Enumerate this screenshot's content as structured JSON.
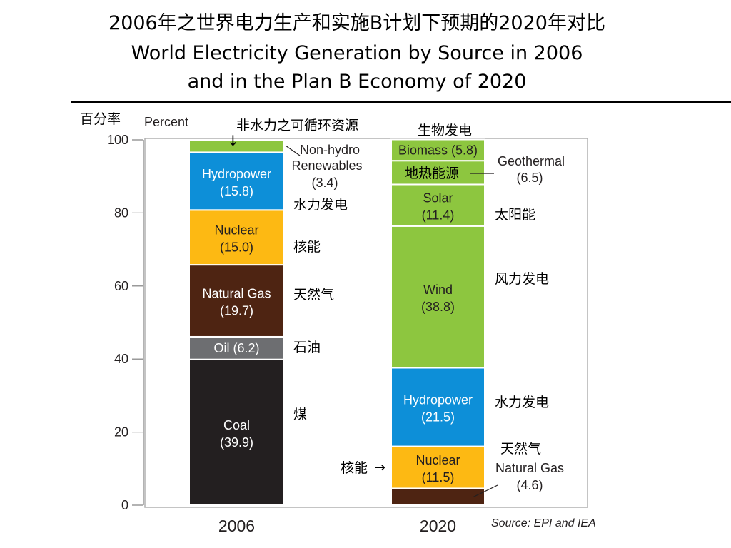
{
  "header": {
    "title_cn": "2006年之世界电力生产和实施B计划下预期的2020年对比",
    "title_en_line1": "World Electricity Generation by Source in 2006",
    "title_en_line2": "and in the Plan B Economy of 2020"
  },
  "annotations_cn": {
    "y_axis": "百分率",
    "non_hydro": "非水力之可循环资源",
    "biomass": "生物发电",
    "geothermal": "地热能源",
    "hydro_2006": "水力发电",
    "solar": "太阳能",
    "nuclear_2006": "核能",
    "wind": "风力发电",
    "gas_2006": "天然气",
    "oil": "石油",
    "hydro_2020": "水力发电",
    "coal": "煤",
    "gas_2020": "天然气",
    "nuclear_2020": "核能"
  },
  "arrows": {
    "down": "↓",
    "right": "→"
  },
  "chart_data": {
    "type": "bar",
    "stacked": true,
    "ylabel": "Percent",
    "ylim": [
      0,
      100
    ],
    "yticks": [
      "0",
      "20",
      "40",
      "60",
      "80",
      "100"
    ],
    "categories": [
      "2006",
      "2020"
    ],
    "source": "Source: EPI and IEA",
    "stacks": [
      {
        "category": "2006",
        "segments": [
          {
            "name": "Coal",
            "value": 39.9,
            "color": "#231f20",
            "text_color": "#ffffff",
            "label_name": "Coal",
            "label_value": "(39.9)"
          },
          {
            "name": "Oil",
            "value": 6.2,
            "color": "#6d6e71",
            "text_color": "#ffffff",
            "label_name": "Oil (6.2)",
            "label_value": ""
          },
          {
            "name": "Natural Gas",
            "value": 19.7,
            "color": "#4e2412",
            "text_color": "#ffffff",
            "label_name": "Natural Gas",
            "label_value": "(19.7)"
          },
          {
            "name": "Nuclear",
            "value": 15.0,
            "color": "#fdb913",
            "text_color": "#231f20",
            "label_name": "Nuclear",
            "label_value": "(15.0)"
          },
          {
            "name": "Hydropower",
            "value": 15.8,
            "color": "#0d8fd8",
            "text_color": "#ffffff",
            "label_name": "Hydropower",
            "label_value": "(15.8)"
          },
          {
            "name": "Non-hydro Renewables",
            "value": 3.4,
            "color": "#8dc63f",
            "text_color": "#231f20",
            "label_name": "",
            "label_value": ""
          }
        ]
      },
      {
        "category": "2020",
        "segments": [
          {
            "name": "Natural Gas",
            "value": 4.6,
            "color": "#4e2412",
            "text_color": "#ffffff",
            "label_name": "",
            "label_value": ""
          },
          {
            "name": "Nuclear",
            "value": 11.5,
            "color": "#fdb913",
            "text_color": "#231f20",
            "label_name": "Nuclear",
            "label_value": "(11.5)"
          },
          {
            "name": "Hydropower",
            "value": 21.5,
            "color": "#0d8fd8",
            "text_color": "#ffffff",
            "label_name": "Hydropower",
            "label_value": "(21.5)"
          },
          {
            "name": "Wind",
            "value": 38.8,
            "color": "#8dc63f",
            "text_color": "#231f20",
            "label_name": "Wind",
            "label_value": "(38.8)"
          },
          {
            "name": "Solar",
            "value": 11.4,
            "color": "#8dc63f",
            "text_color": "#231f20",
            "label_name": "Solar",
            "label_value": "(11.4)"
          },
          {
            "name": "Geothermal",
            "value": 6.5,
            "color": "#8dc63f",
            "text_color": "#231f20",
            "label_name": "",
            "label_value": ""
          },
          {
            "name": "Biomass",
            "value": 5.8,
            "color": "#8dc63f",
            "text_color": "#231f20",
            "label_name": "Biomass (5.8)",
            "label_value": ""
          }
        ]
      }
    ],
    "side_labels": [
      {
        "text": "Non-hydro",
        "bar": "2006"
      },
      {
        "text": "Renewables",
        "bar": "2006"
      },
      {
        "text": "(3.4)",
        "bar": "2006"
      },
      {
        "text": "Geothermal",
        "bar": "2020"
      },
      {
        "text": "(6.5)",
        "bar": "2020"
      },
      {
        "text": "Natural Gas",
        "bar": "2020"
      },
      {
        "text": "(4.6)",
        "bar": "2020"
      }
    ]
  }
}
